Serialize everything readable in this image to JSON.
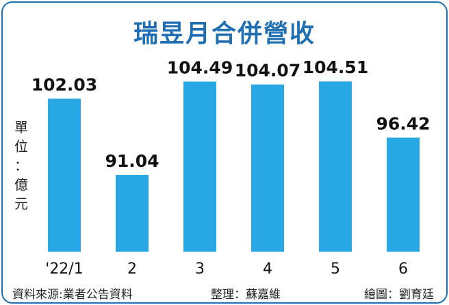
{
  "header": {
    "title": "瑞昱月合併營收"
  },
  "unit_label": "單位：億元",
  "footer": {
    "source": "資料來源:業者公告資料",
    "organizer": "整理：蘇嘉維",
    "drawing": "繪圖：劉育廷"
  },
  "colors": {
    "bar": "#27a8e4",
    "title": "#1f6fb2",
    "frame": "#1c6fb0"
  },
  "chart_data": {
    "type": "bar",
    "title": "瑞昱月合併營收",
    "ylabel": "單位：億元",
    "categories": [
      "'22/1",
      "2",
      "3",
      "4",
      "5",
      "6"
    ],
    "values": [
      102.03,
      91.04,
      104.49,
      104.07,
      104.51,
      96.42
    ],
    "value_labels": [
      "102.03",
      "91.04",
      "104.49",
      "104.07",
      "104.51",
      "96.42"
    ],
    "ylim": [
      80,
      106
    ],
    "grid": false,
    "legend": "none"
  }
}
